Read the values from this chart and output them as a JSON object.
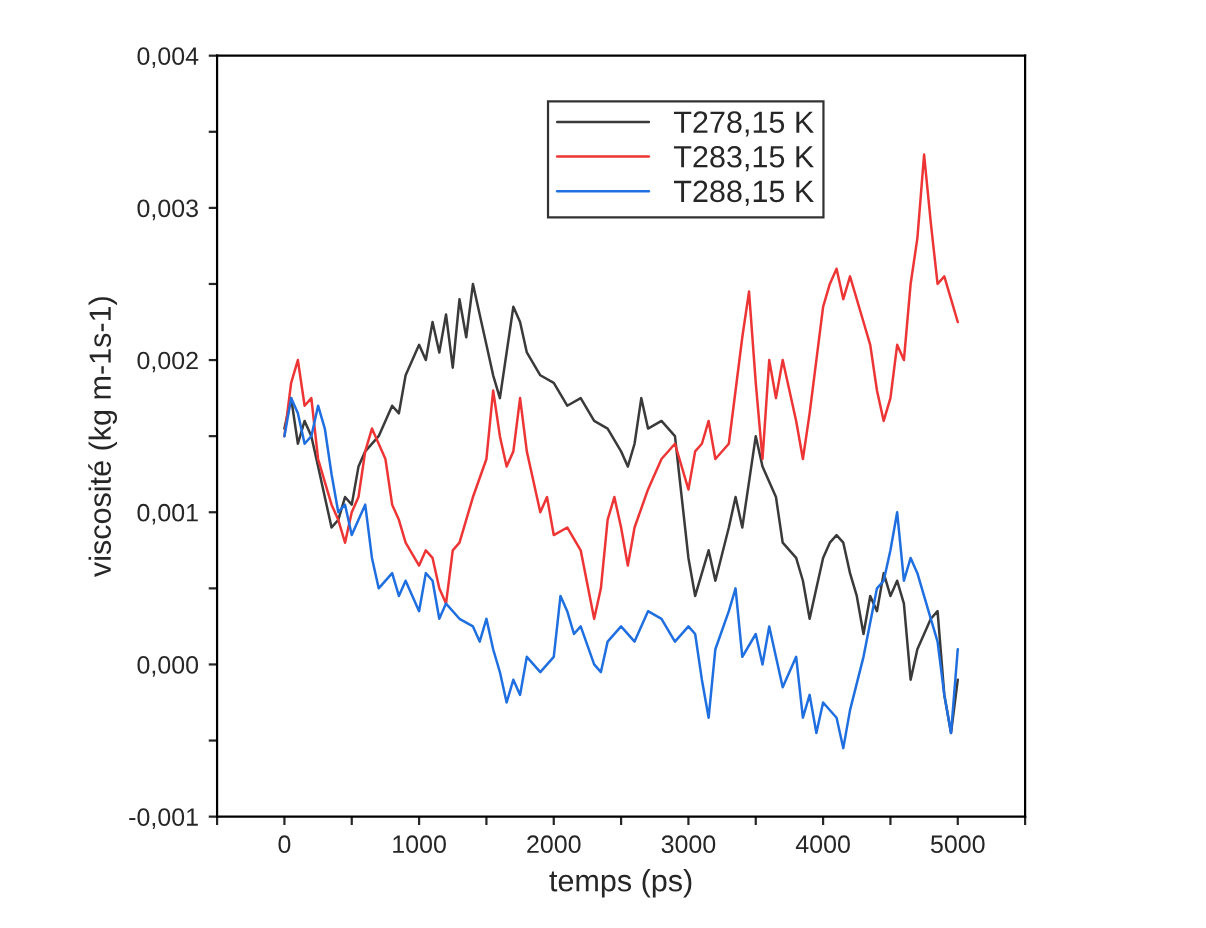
{
  "chart_data": {
    "type": "line",
    "xlabel": "temps (ps)",
    "ylabel": "viscosité (kg m-1s-1)",
    "xlim": [
      -500,
      5500
    ],
    "xticks": [
      {
        "value": -500,
        "label": null
      },
      0,
      {
        "value": 500,
        "label": null
      },
      1000,
      {
        "value": 1500,
        "label": null
      },
      2000,
      {
        "value": 2500,
        "label": null
      },
      3000,
      {
        "value": 3500,
        "label": null
      },
      4000,
      {
        "value": 4500,
        "label": null
      },
      5000,
      {
        "value": 5500,
        "label": null
      }
    ],
    "ylim": [
      -0.001,
      0.004
    ],
    "yticks": [
      {
        "value": -0.001,
        "label": "-0,001"
      },
      {
        "value": -0.0005,
        "label": null
      },
      {
        "value": 0,
        "label": "0,000"
      },
      {
        "value": 0.0005,
        "label": null
      },
      {
        "value": 0.001,
        "label": "0,001"
      },
      {
        "value": 0.0015,
        "label": null
      },
      {
        "value": 0.002,
        "label": "0,002"
      },
      {
        "value": 0.0025,
        "label": null
      },
      {
        "value": 0.003,
        "label": "0,003"
      },
      {
        "value": 0.0035,
        "label": null
      },
      {
        "value": 0.004,
        "label": "0,004"
      }
    ],
    "grid": false,
    "legend": "top",
    "marker": "none",
    "line_style": "solid",
    "series": [
      {
        "name": "T278,15 K",
        "color": "#3a3a3a",
        "x": [
          0,
          50,
          100,
          150,
          200,
          250,
          300,
          350,
          400,
          450,
          500,
          550,
          600,
          700,
          800,
          850,
          900,
          1000,
          1050,
          1100,
          1150,
          1200,
          1250,
          1300,
          1350,
          1400,
          1450,
          1500,
          1550,
          1600,
          1650,
          1700,
          1750,
          1800,
          1900,
          2000,
          2100,
          2200,
          2300,
          2400,
          2500,
          2550,
          2600,
          2650,
          2700,
          2800,
          2900,
          2950,
          3000,
          3050,
          3100,
          3150,
          3200,
          3300,
          3350,
          3400,
          3450,
          3500,
          3550,
          3650,
          3700,
          3800,
          3850,
          3900,
          3950,
          4000,
          4050,
          4100,
          4150,
          4200,
          4250,
          4300,
          4350,
          4400,
          4450,
          4500,
          4550,
          4600,
          4650,
          4700,
          4750,
          4800,
          4850,
          4900,
          4950,
          5000
        ],
        "values": [
          0.00155,
          0.00175,
          0.00145,
          0.0016,
          0.0015,
          0.0013,
          0.0011,
          0.0009,
          0.00095,
          0.0011,
          0.00105,
          0.0013,
          0.0014,
          0.0015,
          0.0017,
          0.00165,
          0.0019,
          0.0021,
          0.002,
          0.00225,
          0.00205,
          0.0023,
          0.00195,
          0.0024,
          0.00215,
          0.0025,
          0.0023,
          0.0021,
          0.0019,
          0.00175,
          0.00205,
          0.00235,
          0.00225,
          0.00205,
          0.0019,
          0.00185,
          0.0017,
          0.00175,
          0.0016,
          0.00155,
          0.0014,
          0.0013,
          0.00145,
          0.00175,
          0.00155,
          0.0016,
          0.0015,
          0.0011,
          0.0007,
          0.00045,
          0.0006,
          0.00075,
          0.00055,
          0.0009,
          0.0011,
          0.0009,
          0.0012,
          0.0015,
          0.0013,
          0.0011,
          0.0008,
          0.0007,
          0.00055,
          0.0003,
          0.0005,
          0.0007,
          0.0008,
          0.00085,
          0.0008,
          0.0006,
          0.00045,
          0.0002,
          0.00045,
          0.00035,
          0.0006,
          0.00045,
          0.00055,
          0.0004,
          -0.0001,
          0.0001,
          0.0002,
          0.0003,
          0.00035,
          -0.0002,
          -0.00045,
          -0.0001
        ]
      },
      {
        "name": "T283,15 K",
        "color": "#ee3535",
        "x": [
          0,
          50,
          100,
          150,
          200,
          250,
          300,
          350,
          400,
          450,
          500,
          550,
          600,
          650,
          700,
          750,
          800,
          850,
          900,
          1000,
          1050,
          1100,
          1150,
          1200,
          1250,
          1300,
          1400,
          1500,
          1550,
          1600,
          1650,
          1700,
          1750,
          1800,
          1850,
          1900,
          1950,
          2000,
          2100,
          2200,
          2300,
          2350,
          2400,
          2450,
          2500,
          2550,
          2600,
          2700,
          2800,
          2900,
          3000,
          3050,
          3100,
          3150,
          3200,
          3300,
          3400,
          3450,
          3500,
          3550,
          3600,
          3650,
          3700,
          3800,
          3850,
          3900,
          4000,
          4050,
          4100,
          4150,
          4200,
          4300,
          4350,
          4400,
          4450,
          4500,
          4550,
          4600,
          4650,
          4700,
          4750,
          4800,
          4850,
          4900,
          4950,
          5000
        ],
        "values": [
          0.0015,
          0.00185,
          0.002,
          0.0017,
          0.00175,
          0.00135,
          0.0012,
          0.00105,
          0.00095,
          0.0008,
          0.001,
          0.0011,
          0.0014,
          0.00155,
          0.00145,
          0.00135,
          0.00105,
          0.00095,
          0.0008,
          0.00065,
          0.00075,
          0.0007,
          0.0005,
          0.0004,
          0.00075,
          0.0008,
          0.0011,
          0.00135,
          0.0018,
          0.0015,
          0.0013,
          0.0014,
          0.00175,
          0.0014,
          0.0012,
          0.001,
          0.0011,
          0.00085,
          0.0009,
          0.00075,
          0.0003,
          0.0005,
          0.00095,
          0.0011,
          0.0009,
          0.00065,
          0.0009,
          0.00115,
          0.00135,
          0.00145,
          0.00115,
          0.0014,
          0.00145,
          0.0016,
          0.00135,
          0.00145,
          0.00215,
          0.00245,
          0.00185,
          0.00135,
          0.002,
          0.00175,
          0.002,
          0.0016,
          0.00135,
          0.00165,
          0.00235,
          0.0025,
          0.0026,
          0.0024,
          0.00255,
          0.00225,
          0.0021,
          0.0018,
          0.0016,
          0.00175,
          0.0021,
          0.002,
          0.0025,
          0.0028,
          0.00335,
          0.0029,
          0.0025,
          0.00255,
          0.0024,
          0.00225
        ]
      },
      {
        "name": "T288,15 K",
        "color": "#1f6fe0",
        "x": [
          0,
          50,
          100,
          150,
          200,
          250,
          300,
          350,
          400,
          450,
          500,
          550,
          600,
          650,
          700,
          800,
          850,
          900,
          1000,
          1050,
          1100,
          1150,
          1200,
          1300,
          1400,
          1450,
          1500,
          1550,
          1600,
          1650,
          1700,
          1750,
          1800,
          1900,
          2000,
          2050,
          2100,
          2150,
          2200,
          2300,
          2350,
          2400,
          2500,
          2600,
          2700,
          2800,
          2900,
          3000,
          3050,
          3100,
          3150,
          3200,
          3300,
          3350,
          3400,
          3500,
          3550,
          3600,
          3700,
          3800,
          3850,
          3900,
          3950,
          4000,
          4100,
          4150,
          4200,
          4300,
          4400,
          4450,
          4500,
          4550,
          4600,
          4650,
          4700,
          4800,
          4850,
          4900,
          4950,
          5000
        ],
        "values": [
          0.0015,
          0.00175,
          0.00165,
          0.00145,
          0.0015,
          0.0017,
          0.00155,
          0.00125,
          0.001,
          0.00105,
          0.00085,
          0.00095,
          0.00105,
          0.0007,
          0.0005,
          0.0006,
          0.00045,
          0.00055,
          0.00035,
          0.0006,
          0.00055,
          0.0003,
          0.0004,
          0.0003,
          0.00025,
          0.00015,
          0.0003,
          0.0001,
          -5e-05,
          -0.00025,
          -0.0001,
          -0.0002,
          5e-05,
          -5e-05,
          5e-05,
          0.00045,
          0.00035,
          0.0002,
          0.00025,
          0.0,
          -5e-05,
          0.00015,
          0.00025,
          0.00015,
          0.00035,
          0.0003,
          0.00015,
          0.00025,
          0.0002,
          -0.0001,
          -0.00035,
          0.0001,
          0.00035,
          0.0005,
          5e-05,
          0.0002,
          0.0,
          0.00025,
          -0.00015,
          5e-05,
          -0.00035,
          -0.0002,
          -0.00045,
          -0.00025,
          -0.00035,
          -0.00055,
          -0.0003,
          5e-05,
          0.0005,
          0.00055,
          0.00075,
          0.001,
          0.00055,
          0.0007,
          0.0006,
          0.0003,
          0.00015,
          -0.0002,
          -0.00045,
          0.0001
        ]
      }
    ]
  }
}
